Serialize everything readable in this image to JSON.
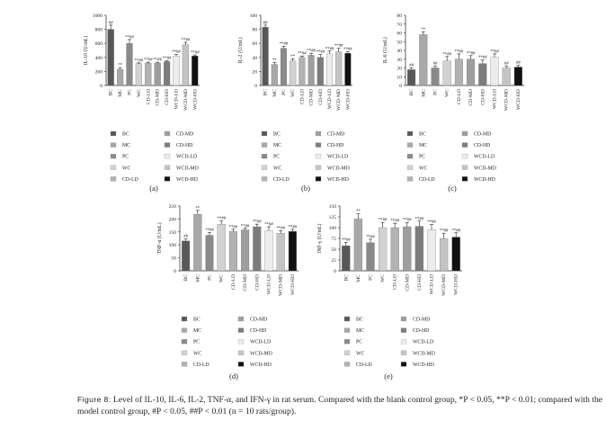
{
  "caption": {
    "label": "Figure 8:",
    "text": "Level of IL-10, IL-6, IL-2, TNF-α, and IFN-γ in rat serum. Compared with the blank control group, *P < 0.05, **P < 0.01; compared with the model control group, #P < 0.05, ##P < 0.01 (n = 10 rats/group)."
  },
  "legend_colors": {
    "BC": "#585858",
    "MC": "#a8a8a8",
    "PC": "#8a8a8a",
    "WC": "#d2d2d2",
    "CD-LD": "#b2b2b2",
    "CD-MD": "#9e9e9e",
    "CD-HD": "#7c7c7c",
    "WCD-LD": "#ececec",
    "WCD-MD": "#c4c4c4",
    "WCD-HD": "#111111"
  },
  "chart_data": [
    {
      "type": "bar",
      "panel": "(a)",
      "ylabel": "IL-10 (U/mL)",
      "ylim": [
        0,
        1000
      ],
      "yticks": [
        "0",
        "200",
        "400",
        "600",
        "800",
        "1000"
      ],
      "categories": [
        "BC",
        "MC",
        "PC",
        "WC",
        "CD-LD",
        "CD-MD",
        "CD-HD",
        "WCD-LD",
        "WCD-MD",
        "WCD-HD"
      ],
      "values": [
        800,
        230,
        600,
        310,
        320,
        320,
        340,
        420,
        580,
        420
      ],
      "errors": [
        60,
        25,
        55,
        12,
        12,
        12,
        15,
        25,
        35,
        15
      ],
      "annotations": [
        "##",
        "**",
        "**##",
        "**##",
        "**##",
        "**##",
        "**##",
        "**##",
        "**##",
        "**##"
      ]
    },
    {
      "type": "bar",
      "panel": "(b)",
      "ylabel": "IL-2 (U/mL)",
      "ylim": [
        0,
        100
      ],
      "yticks": [
        "0",
        "20",
        "40",
        "60",
        "80",
        "100"
      ],
      "categories": [
        "BC",
        "MC",
        "PC",
        "WC",
        "CD-LD",
        "CD-MD",
        "CD-HD",
        "WCD-LD",
        "WCD-MD",
        "WCD-HD"
      ],
      "values": [
        83,
        30,
        53,
        35,
        40,
        43,
        40,
        45,
        48,
        46
      ],
      "errors": [
        3,
        3,
        3,
        3,
        2,
        3,
        4,
        4,
        5,
        2
      ],
      "annotations": [
        "##",
        "**",
        "**##",
        "**",
        "**##",
        "**##",
        "**##",
        "**##",
        "**##",
        "**##"
      ]
    },
    {
      "type": "bar",
      "panel": "(c)",
      "ylabel": "IL-6 (U/mL)",
      "ylim": [
        0,
        80
      ],
      "yticks": [
        "0",
        "10",
        "20",
        "30",
        "40",
        "50",
        "60",
        "70",
        "80"
      ],
      "categories": [
        "BC",
        "MC",
        "PC",
        "WC",
        "CD-LD",
        "CD-MD",
        "CD-HD",
        "WCD-LD",
        "WCD-MD",
        "WCD-HD"
      ],
      "values": [
        18,
        58,
        20,
        28,
        30,
        30,
        25,
        32,
        20,
        21
      ],
      "errors": [
        2,
        3,
        2,
        5,
        6,
        4,
        4,
        4,
        2,
        2
      ],
      "annotations": [
        "##",
        "**",
        "##",
        "**##",
        "**##",
        "**##",
        "**##",
        "**##",
        "##",
        "##"
      ]
    },
    {
      "type": "bar",
      "panel": "(d)",
      "ylabel": "TNF-α (U/mL)",
      "ylim": [
        0,
        250
      ],
      "yticks": [
        "0",
        "50",
        "100",
        "150",
        "200",
        "250"
      ],
      "categories": [
        "BC",
        "MC",
        "PC",
        "WC",
        "CD-LD",
        "CD-MD",
        "CD-HD",
        "WCD-LD",
        "WCD-MD",
        "WCD-HD"
      ],
      "values": [
        115,
        218,
        137,
        180,
        152,
        158,
        170,
        155,
        145,
        152
      ],
      "errors": [
        8,
        15,
        10,
        12,
        8,
        6,
        10,
        15,
        10,
        8
      ],
      "annotations": [
        "##",
        "**",
        "**##",
        "**##",
        "**##",
        "**##",
        "**##",
        "**##",
        "**##",
        "**##"
      ]
    },
    {
      "type": "bar",
      "panel": "(e)",
      "ylabel": "INF-γ (U/mL)",
      "ylim": [
        0,
        150
      ],
      "yticks": [
        "0",
        "25",
        "50",
        "75",
        "100",
        "125",
        "150"
      ],
      "categories": [
        "BC",
        "MC",
        "PC",
        "WC",
        "CD-LD",
        "CD-MD",
        "CD-HD",
        "WCD-LD",
        "WCD-MD",
        "WCD-HD"
      ],
      "values": [
        58,
        120,
        65,
        100,
        100,
        102,
        103,
        95,
        75,
        78
      ],
      "errors": [
        8,
        12,
        8,
        12,
        10,
        10,
        12,
        12,
        12,
        10
      ],
      "annotations": [
        "**##",
        "**",
        "**##",
        "**##",
        "**##",
        "**##",
        "**##",
        "**##",
        "**##",
        "**##"
      ]
    }
  ]
}
